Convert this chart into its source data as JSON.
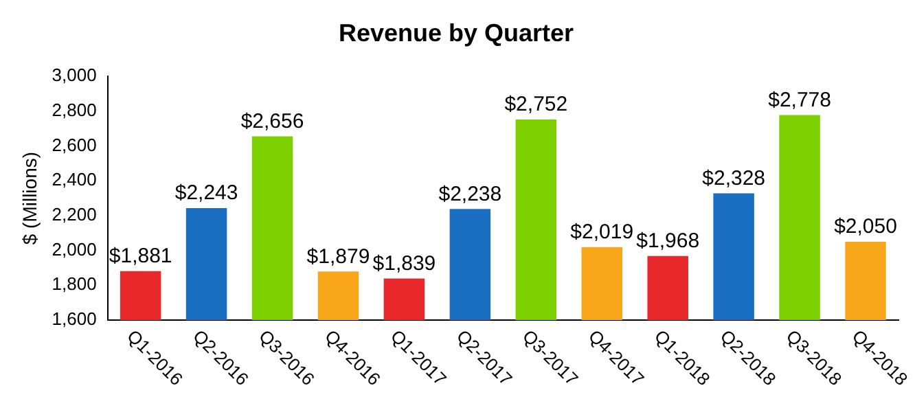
{
  "chart_data": {
    "type": "bar",
    "title": "Revenue by Quarter",
    "ylabel": "$ (Millions)",
    "categories": [
      "Q1-2016",
      "Q2-2016",
      "Q3-2016",
      "Q4-2016",
      "Q1-2017",
      "Q2-2017",
      "Q3-2017",
      "Q4-2017",
      "Q1-2018",
      "Q2-2018",
      "Q3-2018",
      "Q4-2018"
    ],
    "values": [
      1881,
      2243,
      2656,
      1879,
      1839,
      2238,
      2752,
      2019,
      1968,
      2328,
      2778,
      2050
    ],
    "value_labels": [
      "$1,881",
      "$2,243",
      "$2,656",
      "$1,879",
      "$1,839",
      "$2,238",
      "$2,752",
      "$2,019",
      "$1,968",
      "$2,328",
      "$2,778",
      "$2,050"
    ],
    "colors": [
      "#e8282b",
      "#1a6fc3",
      "#7dcf00",
      "#f9a71a",
      "#e8282b",
      "#1a6fc3",
      "#7dcf00",
      "#f9a71a",
      "#e8282b",
      "#1a6fc3",
      "#7dcf00",
      "#f9a71a"
    ],
    "ylim": [
      1600,
      3000
    ],
    "yticks": [
      {
        "value": 1600,
        "label": "1,600"
      },
      {
        "value": 1800,
        "label": "1,800"
      },
      {
        "value": 2000,
        "label": "2,000"
      },
      {
        "value": 2200,
        "label": "2,200"
      },
      {
        "value": 2400,
        "label": "2,400"
      },
      {
        "value": 2600,
        "label": "2,600"
      },
      {
        "value": 2800,
        "label": "2,800"
      },
      {
        "value": 3000,
        "label": "3,000"
      }
    ],
    "grid": false,
    "legend": false
  }
}
